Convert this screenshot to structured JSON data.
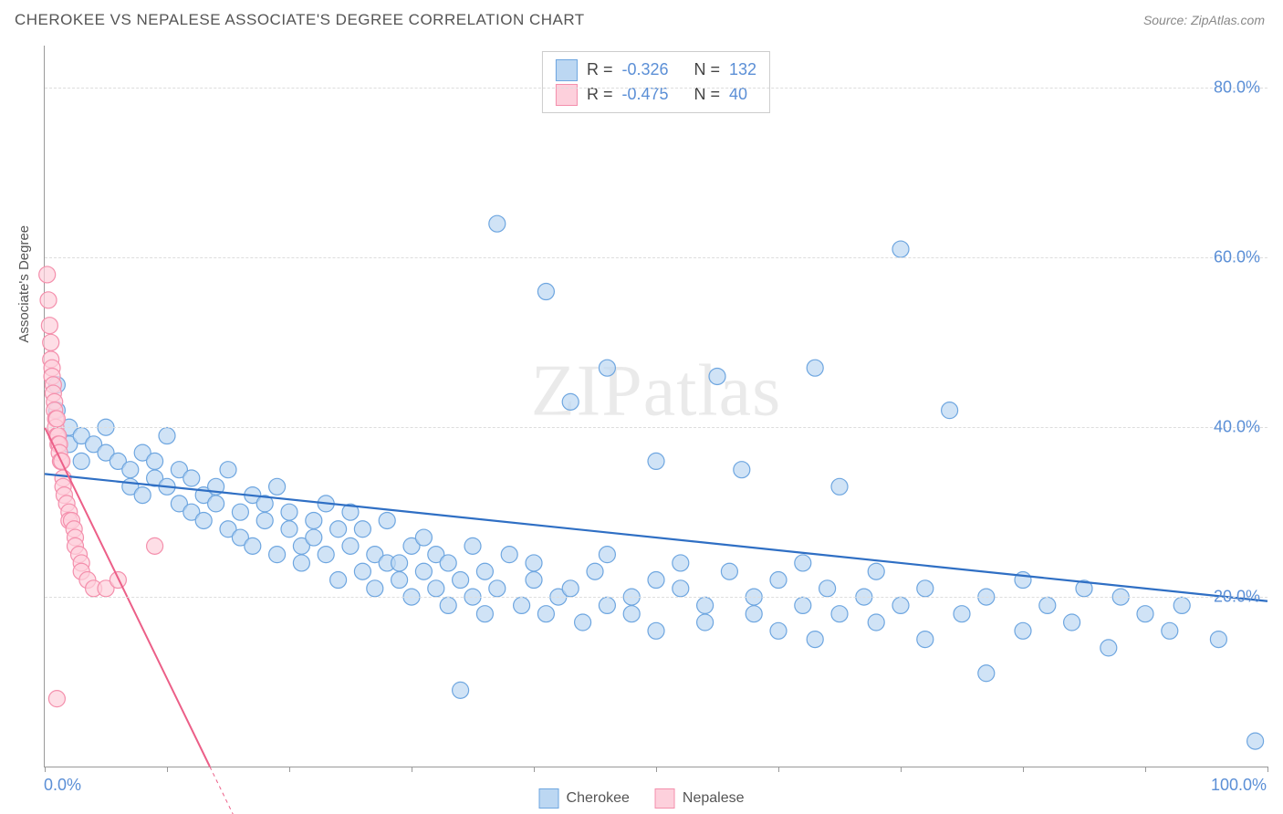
{
  "header": {
    "title": "CHEROKEE VS NEPALESE ASSOCIATE'S DEGREE CORRELATION CHART",
    "source": "Source: ZipAtlas.com"
  },
  "watermark": {
    "prefix": "ZIP",
    "suffix": "atlas"
  },
  "ylabel": "Associate's Degree",
  "chart": {
    "type": "scatter",
    "xlim": [
      0,
      100
    ],
    "ylim": [
      0,
      85
    ],
    "background_color": "#ffffff",
    "grid_color": "#dddddd",
    "yticks": [
      20,
      40,
      60,
      80
    ],
    "ytick_labels": [
      "20.0%",
      "40.0%",
      "60.0%",
      "80.0%"
    ],
    "ytick_color": "#5b8fd6",
    "xticks": [
      0,
      10,
      20,
      30,
      40,
      50,
      60,
      70,
      80,
      90,
      100
    ],
    "xtick_labels_shown": {
      "0": "0.0%",
      "100": "100.0%"
    },
    "xtick_color": "#5b8fd6",
    "marker_radius": 9,
    "marker_stroke_width": 1.2,
    "series": [
      {
        "name": "Cherokee",
        "fill": "#bcd7f2",
        "stroke": "#6ea6e0",
        "line_color": "#2f6fc4",
        "line_width": 2.2,
        "R": "-0.326",
        "N": "132",
        "trend": {
          "x1": 0,
          "y1": 34.5,
          "x2": 100,
          "y2": 19.5
        },
        "points": [
          [
            1,
            45
          ],
          [
            1,
            42
          ],
          [
            2,
            40
          ],
          [
            2,
            38
          ],
          [
            3,
            39
          ],
          [
            3,
            36
          ],
          [
            4,
            38
          ],
          [
            5,
            37
          ],
          [
            5,
            40
          ],
          [
            6,
            36
          ],
          [
            7,
            35
          ],
          [
            7,
            33
          ],
          [
            8,
            37
          ],
          [
            8,
            32
          ],
          [
            9,
            34
          ],
          [
            9,
            36
          ],
          [
            10,
            39
          ],
          [
            10,
            33
          ],
          [
            11,
            31
          ],
          [
            11,
            35
          ],
          [
            12,
            30
          ],
          [
            12,
            34
          ],
          [
            13,
            32
          ],
          [
            13,
            29
          ],
          [
            14,
            33
          ],
          [
            14,
            31
          ],
          [
            15,
            28
          ],
          [
            15,
            35
          ],
          [
            16,
            30
          ],
          [
            16,
            27
          ],
          [
            17,
            32
          ],
          [
            17,
            26
          ],
          [
            18,
            31
          ],
          [
            18,
            29
          ],
          [
            19,
            25
          ],
          [
            19,
            33
          ],
          [
            20,
            28
          ],
          [
            20,
            30
          ],
          [
            21,
            26
          ],
          [
            21,
            24
          ],
          [
            22,
            29
          ],
          [
            22,
            27
          ],
          [
            23,
            25
          ],
          [
            23,
            31
          ],
          [
            24,
            28
          ],
          [
            24,
            22
          ],
          [
            25,
            30
          ],
          [
            25,
            26
          ],
          [
            26,
            23
          ],
          [
            26,
            28
          ],
          [
            27,
            25
          ],
          [
            27,
            21
          ],
          [
            28,
            29
          ],
          [
            28,
            24
          ],
          [
            29,
            24
          ],
          [
            29,
            22
          ],
          [
            30,
            26
          ],
          [
            30,
            20
          ],
          [
            31,
            23
          ],
          [
            31,
            27
          ],
          [
            32,
            21
          ],
          [
            32,
            25
          ],
          [
            33,
            19
          ],
          [
            33,
            24
          ],
          [
            34,
            9
          ],
          [
            34,
            22
          ],
          [
            35,
            20
          ],
          [
            35,
            26
          ],
          [
            36,
            23
          ],
          [
            36,
            18
          ],
          [
            37,
            64
          ],
          [
            37,
            21
          ],
          [
            38,
            25
          ],
          [
            39,
            19
          ],
          [
            40,
            22
          ],
          [
            40,
            24
          ],
          [
            41,
            56
          ],
          [
            41,
            18
          ],
          [
            42,
            20
          ],
          [
            43,
            21
          ],
          [
            43,
            43
          ],
          [
            44,
            17
          ],
          [
            45,
            23
          ],
          [
            46,
            19
          ],
          [
            46,
            25
          ],
          [
            46,
            47
          ],
          [
            48,
            20
          ],
          [
            48,
            18
          ],
          [
            50,
            22
          ],
          [
            50,
            16
          ],
          [
            50,
            36
          ],
          [
            52,
            21
          ],
          [
            52,
            24
          ],
          [
            54,
            19
          ],
          [
            54,
            17
          ],
          [
            55,
            46
          ],
          [
            56,
            23
          ],
          [
            57,
            35
          ],
          [
            58,
            20
          ],
          [
            58,
            18
          ],
          [
            60,
            22
          ],
          [
            60,
            16
          ],
          [
            62,
            19
          ],
          [
            62,
            24
          ],
          [
            63,
            47
          ],
          [
            63,
            15
          ],
          [
            64,
            21
          ],
          [
            65,
            18
          ],
          [
            65,
            33
          ],
          [
            67,
            20
          ],
          [
            68,
            17
          ],
          [
            68,
            23
          ],
          [
            70,
            61
          ],
          [
            70,
            19
          ],
          [
            72,
            21
          ],
          [
            72,
            15
          ],
          [
            74,
            42
          ],
          [
            75,
            18
          ],
          [
            77,
            20
          ],
          [
            77,
            11
          ],
          [
            80,
            22
          ],
          [
            80,
            16
          ],
          [
            82,
            19
          ],
          [
            84,
            17
          ],
          [
            85,
            21
          ],
          [
            87,
            14
          ],
          [
            88,
            20
          ],
          [
            90,
            18
          ],
          [
            92,
            16
          ],
          [
            93,
            19
          ],
          [
            96,
            15
          ],
          [
            99,
            3
          ]
        ]
      },
      {
        "name": "Nepalese",
        "fill": "#fdd0dc",
        "stroke": "#f48fac",
        "line_color": "#ec5f88",
        "line_width": 2,
        "R": "-0.475",
        "N": "40",
        "trend": {
          "x1": 0,
          "y1": 40,
          "x2": 13.5,
          "y2": 0
        },
        "points": [
          [
            0.2,
            58
          ],
          [
            0.3,
            55
          ],
          [
            0.4,
            52
          ],
          [
            0.5,
            50
          ],
          [
            0.5,
            48
          ],
          [
            0.6,
            47
          ],
          [
            0.6,
            46
          ],
          [
            0.7,
            45
          ],
          [
            0.7,
            44
          ],
          [
            0.8,
            43
          ],
          [
            0.8,
            42
          ],
          [
            0.9,
            41
          ],
          [
            0.9,
            40
          ],
          [
            1.0,
            41
          ],
          [
            1.0,
            39
          ],
          [
            1.1,
            39
          ],
          [
            1.1,
            38
          ],
          [
            1.2,
            38
          ],
          [
            1.2,
            37
          ],
          [
            1.3,
            36
          ],
          [
            1.4,
            36
          ],
          [
            1.5,
            34
          ],
          [
            1.5,
            33
          ],
          [
            1.6,
            32
          ],
          [
            1.8,
            31
          ],
          [
            2.0,
            30
          ],
          [
            2.0,
            29
          ],
          [
            2.2,
            29
          ],
          [
            2.4,
            28
          ],
          [
            2.5,
            27
          ],
          [
            2.5,
            26
          ],
          [
            2.8,
            25
          ],
          [
            3.0,
            24
          ],
          [
            3.0,
            23
          ],
          [
            3.5,
            22
          ],
          [
            4.0,
            21
          ],
          [
            5.0,
            21
          ],
          [
            6.0,
            22
          ],
          [
            1.0,
            8
          ],
          [
            9.0,
            26
          ]
        ]
      }
    ]
  },
  "legend_top": {
    "rows": [
      {
        "swatch": "#bcd7f2",
        "border": "#6ea6e0",
        "r_label": "R =",
        "r_value": "-0.326",
        "n_label": "N =",
        "n_value": "132"
      },
      {
        "swatch": "#fdd0dc",
        "border": "#f48fac",
        "r_label": "R =",
        "r_value": "-0.475",
        "n_label": "N =",
        "n_value": "40"
      }
    ],
    "value_color": "#5b8fd6"
  },
  "legend_bottom": {
    "items": [
      {
        "swatch": "#bcd7f2",
        "border": "#6ea6e0",
        "label": "Cherokee"
      },
      {
        "swatch": "#fdd0dc",
        "border": "#f48fac",
        "label": "Nepalese"
      }
    ]
  }
}
